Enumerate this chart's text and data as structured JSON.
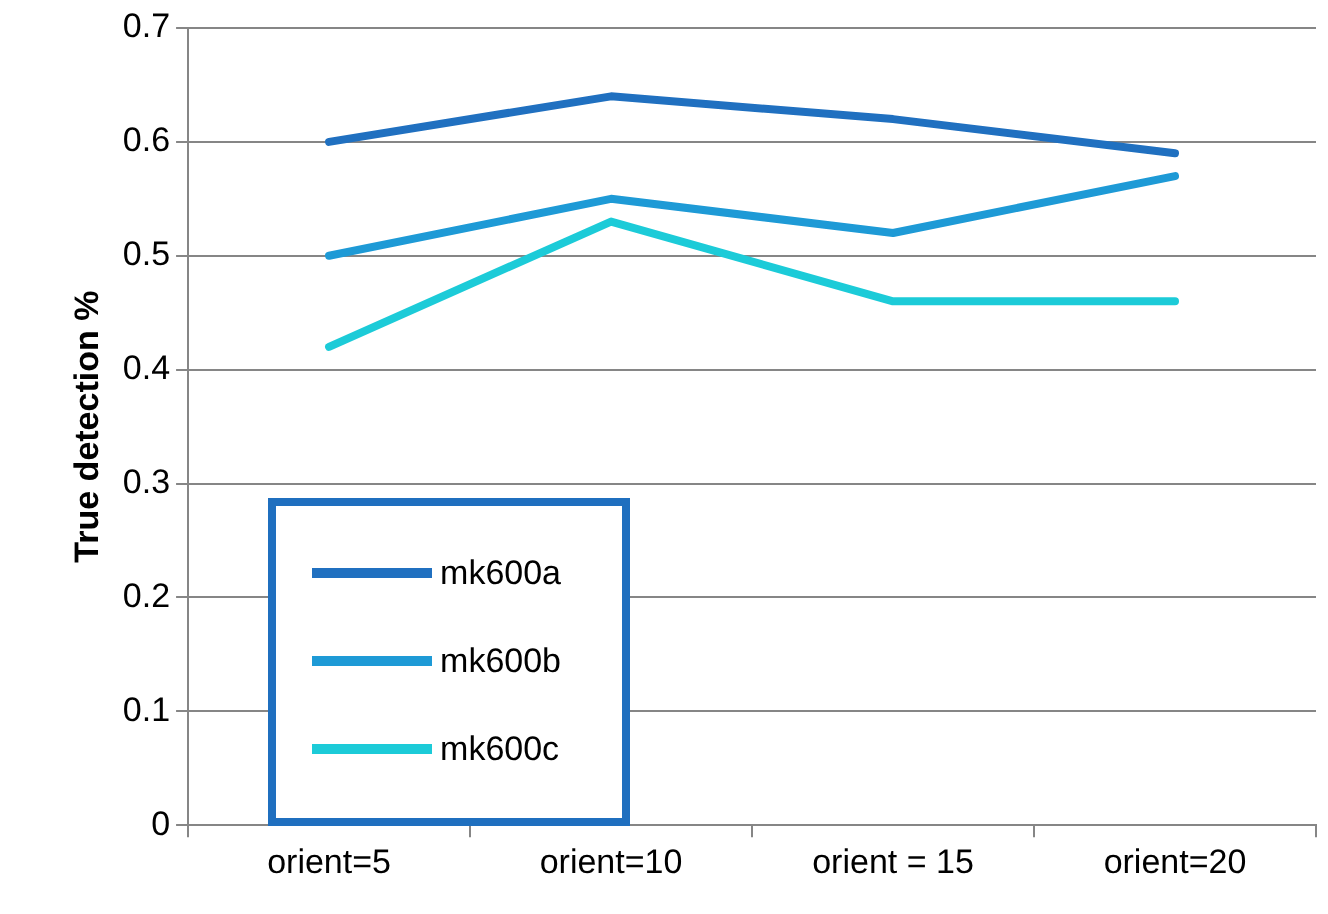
{
  "chart_data": {
    "type": "line",
    "ylabel": "True detection %",
    "categories": [
      "orient=5",
      "orient=10",
      "orient = 15",
      "orient=20"
    ],
    "series": [
      {
        "name": "mk600a",
        "color": "#2070c0",
        "values": [
          0.6,
          0.64,
          0.62,
          0.59
        ]
      },
      {
        "name": "mk600b",
        "color": "#1e9ad6",
        "values": [
          0.5,
          0.55,
          0.52,
          0.57
        ]
      },
      {
        "name": "mk600c",
        "color": "#1ccbd8",
        "values": [
          0.42,
          0.53,
          0.46,
          0.46
        ]
      }
    ],
    "ylim": [
      0,
      0.7
    ],
    "yticks": [
      0,
      0.1,
      0.2,
      0.3,
      0.4,
      0.5,
      0.6,
      0.7
    ],
    "grid": "y",
    "legend": "bottom left",
    "marker": "none",
    "line_style": "solid"
  }
}
